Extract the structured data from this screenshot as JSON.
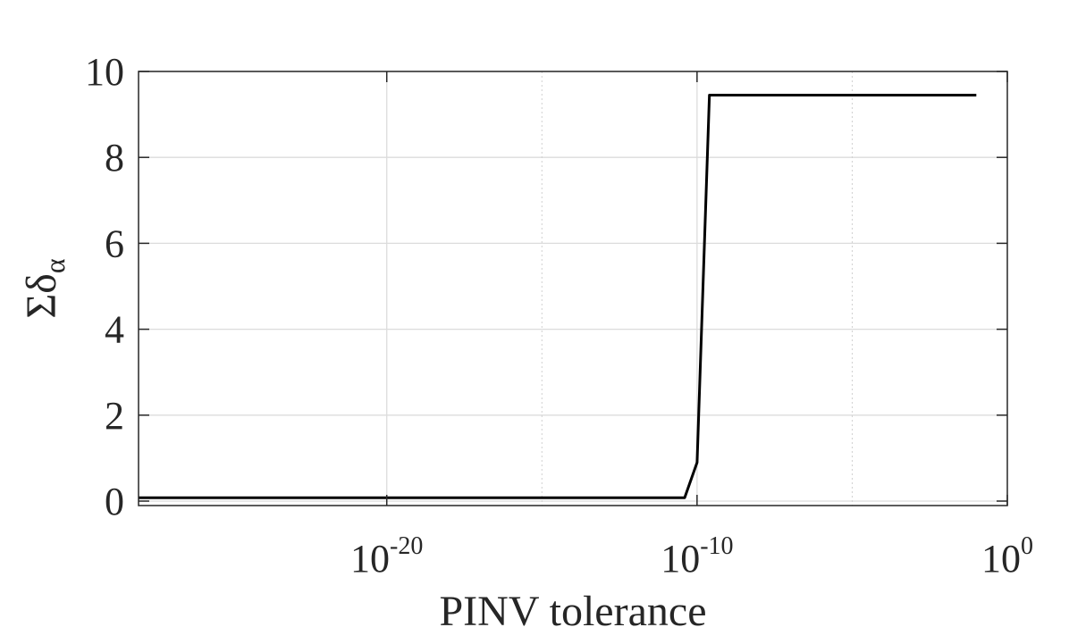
{
  "chart_data": {
    "type": "line",
    "title": "",
    "xlabel": "PINV tolerance",
    "ylabel": "Σδα",
    "ylabel_parts": {
      "symbol": "Σδ",
      "subscript": "α"
    },
    "x_scale": "log",
    "xlim_exponent": [
      -28,
      0
    ],
    "ylim": [
      0,
      10
    ],
    "grid": true,
    "x_major_tick_exponents": [
      -20,
      -10,
      0
    ],
    "x_minor_grid_exponents": [
      -15,
      -5
    ],
    "x_tick_labels": [
      {
        "base": "10",
        "exp": "-20"
      },
      {
        "base": "10",
        "exp": "-10"
      },
      {
        "base": "10",
        "exp": "0"
      }
    ],
    "y_ticks": [
      0,
      2,
      4,
      6,
      8,
      10
    ],
    "y_tick_labels": [
      "0",
      "2",
      "4",
      "6",
      "8",
      "10"
    ],
    "series": [
      {
        "name": "sum delta alpha",
        "color": "#000000",
        "x_exponents": [
          -28,
          -10.4,
          -10.0,
          -9.6,
          -1
        ],
        "values": [
          0.08,
          0.08,
          0.9,
          9.45,
          9.45
        ]
      }
    ]
  }
}
